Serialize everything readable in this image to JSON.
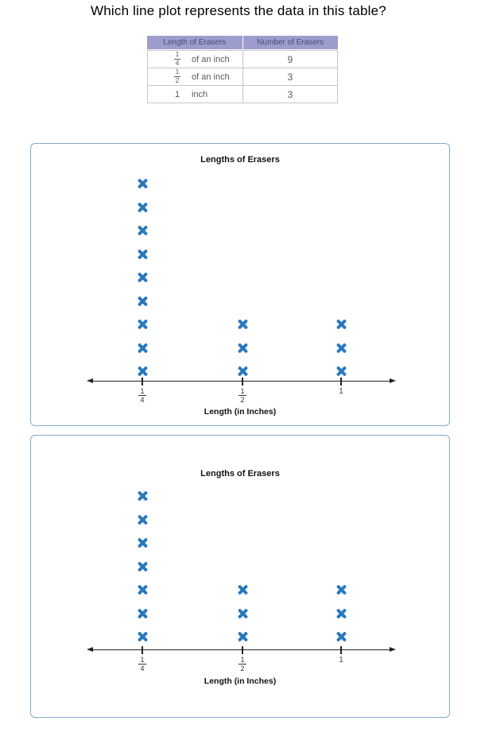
{
  "question": "Which line plot represents the data in this table?",
  "table": {
    "headers": [
      "Length of Erasers",
      "Number of Erasers"
    ],
    "rows": [
      {
        "num": "1",
        "den": "4",
        "text": "of an inch",
        "count": "9"
      },
      {
        "num": "1",
        "den": "2",
        "text": "of an inch",
        "count": "3"
      },
      {
        "whole": "1",
        "text": "inch",
        "count": "3"
      }
    ]
  },
  "chart_data": [
    {
      "type": "line_plot",
      "title": "Lengths of Erasers",
      "xlabel": "Length (in Inches)",
      "categories": [
        "1/4",
        "1/2",
        "1"
      ],
      "values": [
        9,
        3,
        3
      ],
      "marker": "x",
      "marker_color": "#2878be",
      "axis_color": "#222222",
      "legend": "none",
      "grid": false
    },
    {
      "type": "line_plot",
      "title": "Lengths of Erasers",
      "xlabel": "Length (in Inches)",
      "categories": [
        "1/4",
        "1/2",
        "1"
      ],
      "values": [
        7,
        3,
        3
      ],
      "marker": "x",
      "marker_color": "#2878be",
      "axis_color": "#222222",
      "legend": "none",
      "grid": false
    }
  ],
  "colors": {
    "header_bg": "#9d9dcd",
    "header_text": "#4a4a78",
    "body_text": "#5a5a5c",
    "marker_blue": "#2878be",
    "panel_border": "#7faecb"
  }
}
